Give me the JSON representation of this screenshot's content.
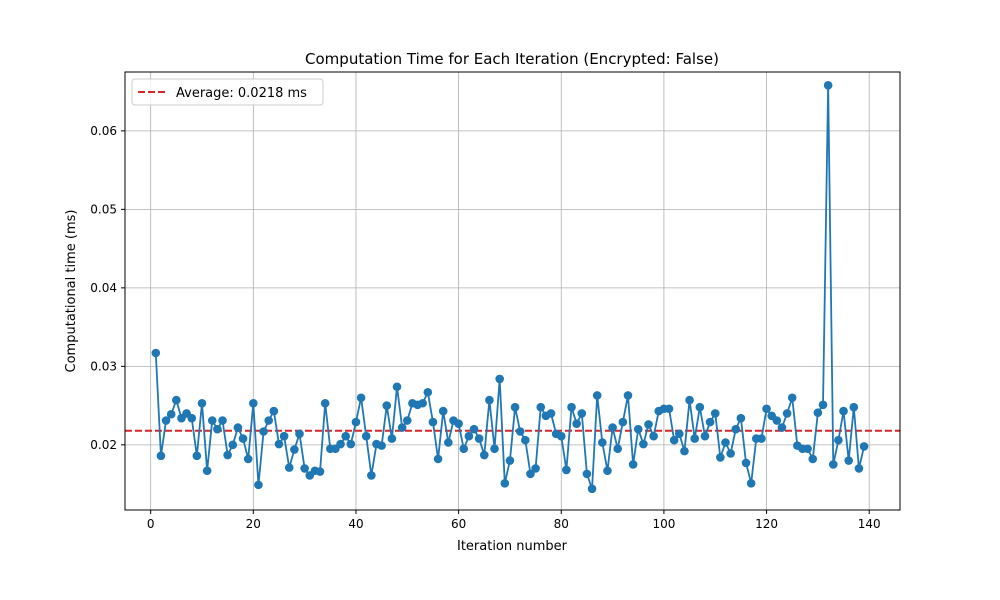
{
  "chart_data": {
    "type": "line",
    "title": "Computation Time for Each Iteration (Encrypted: False)",
    "xlabel": "Iteration number",
    "ylabel": "Computational time (ms)",
    "xlim": [
      -5,
      146
    ],
    "ylim": [
      0.0117,
      0.0675
    ],
    "xticks": [
      0,
      20,
      40,
      60,
      80,
      100,
      120,
      140
    ],
    "xtick_labels": [
      "0",
      "20",
      "40",
      "60",
      "80",
      "100",
      "120",
      "140"
    ],
    "yticks": [
      0.02,
      0.03,
      0.04,
      0.05,
      0.06
    ],
    "ytick_labels": [
      "0.02",
      "0.03",
      "0.04",
      "0.05",
      "0.06"
    ],
    "grid": true,
    "legend_position": "top-left",
    "series": [
      {
        "color": "#1f77b4",
        "marker": "circle",
        "x": [
          1,
          2,
          3,
          4,
          5,
          6,
          7,
          8,
          9,
          10,
          11,
          12,
          13,
          14,
          15,
          16,
          17,
          18,
          19,
          20,
          21,
          22,
          23,
          24,
          25,
          26,
          27,
          28,
          29,
          30,
          31,
          32,
          33,
          34,
          35,
          36,
          37,
          38,
          39,
          40,
          41,
          42,
          43,
          44,
          45,
          46,
          47,
          48,
          49,
          50,
          51,
          52,
          53,
          54,
          55,
          56,
          57,
          58,
          59,
          60,
          61,
          62,
          63,
          64,
          65,
          66,
          67,
          68,
          69,
          70,
          71,
          72,
          73,
          74,
          75,
          76,
          77,
          78,
          79,
          80,
          81,
          82,
          83,
          84,
          85,
          86,
          87,
          88,
          89,
          90,
          91,
          92,
          93,
          94,
          95,
          96,
          97,
          98,
          99,
          100,
          101,
          102,
          103,
          104,
          105,
          106,
          107,
          108,
          109,
          110,
          111,
          112,
          113,
          114,
          115,
          116,
          117,
          118,
          119,
          120,
          121,
          122,
          123,
          124,
          125,
          126,
          127,
          128,
          129,
          130,
          131,
          132,
          133,
          134,
          135,
          136,
          137,
          138,
          139
        ],
        "y": [
          0.0317,
          0.0186,
          0.0231,
          0.0239,
          0.0257,
          0.0234,
          0.024,
          0.0234,
          0.0186,
          0.0253,
          0.0167,
          0.0231,
          0.022,
          0.0231,
          0.0187,
          0.02,
          0.0222,
          0.0208,
          0.0182,
          0.0253,
          0.0149,
          0.0217,
          0.0231,
          0.0243,
          0.0201,
          0.0211,
          0.0171,
          0.0194,
          0.0214,
          0.017,
          0.0161,
          0.0167,
          0.0166,
          0.0253,
          0.0195,
          0.0195,
          0.0201,
          0.0211,
          0.0201,
          0.0229,
          0.026,
          0.0211,
          0.0161,
          0.0201,
          0.0199,
          0.025,
          0.0208,
          0.0274,
          0.0222,
          0.0231,
          0.0253,
          0.0251,
          0.0253,
          0.0267,
          0.0229,
          0.0182,
          0.0243,
          0.0203,
          0.0231,
          0.0227,
          0.0195,
          0.0211,
          0.022,
          0.0208,
          0.0187,
          0.0257,
          0.0195,
          0.0284,
          0.0151,
          0.018,
          0.0248,
          0.0217,
          0.0206,
          0.0163,
          0.017,
          0.0248,
          0.0237,
          0.024,
          0.0214,
          0.0211,
          0.0168,
          0.0248,
          0.0227,
          0.024,
          0.0163,
          0.0144,
          0.0263,
          0.0203,
          0.0167,
          0.0222,
          0.0195,
          0.0229,
          0.0263,
          0.0175,
          0.022,
          0.0201,
          0.0226,
          0.0211,
          0.0243,
          0.0246,
          0.0246,
          0.0206,
          0.0214,
          0.0192,
          0.0257,
          0.0208,
          0.0248,
          0.0211,
          0.0229,
          0.024,
          0.0184,
          0.0203,
          0.0189,
          0.022,
          0.0234,
          0.0177,
          0.0151,
          0.0208,
          0.0208,
          0.0246,
          0.0237,
          0.0231,
          0.0222,
          0.024,
          0.026,
          0.0199,
          0.0195,
          0.0195,
          0.0182,
          0.0241,
          0.0251,
          0.0658,
          0.0175,
          0.0206,
          0.0243,
          0.018,
          0.0248,
          0.017,
          0.0198
        ]
      }
    ],
    "average_line": {
      "label": "Average: 0.0218 ms",
      "value": 0.0218,
      "color": "#d62728",
      "style": "dashed"
    }
  }
}
